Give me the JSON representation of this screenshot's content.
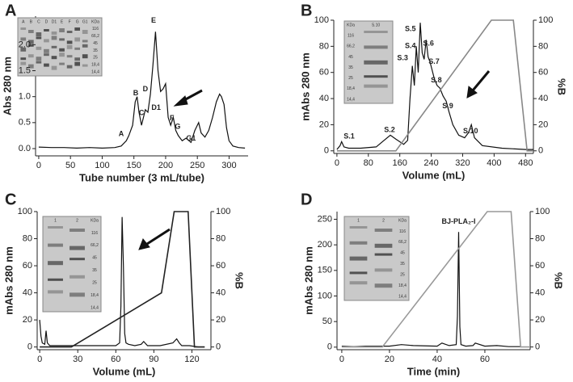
{
  "chart_data": [
    {
      "type": "line",
      "panel_label": "A",
      "xlabel": "Tube number (3 mL/tube)",
      "ylabel": "Abs 280 nm",
      "xlim": [
        -5,
        330
      ],
      "ylim": [
        -0.14,
        2.55
      ],
      "xticks": [
        0,
        50,
        100,
        150,
        200,
        250,
        300
      ],
      "yticks": [
        {
          "value": 0,
          "label": "0.0"
        },
        0.5,
        {
          "value": 1,
          "label": "1.0"
        },
        1.5,
        {
          "value": 2,
          "label": "2.0"
        }
      ],
      "series": [
        {
          "color": "#111111",
          "x": [
            0,
            20,
            40,
            60,
            80,
            100,
            120,
            130,
            138,
            142,
            148,
            152,
            155,
            158,
            162,
            165,
            168,
            172,
            176,
            180,
            184,
            188,
            192,
            196,
            200,
            204,
            208,
            212,
            216,
            220,
            226,
            232,
            240,
            246,
            252,
            256,
            262,
            268,
            274,
            280,
            285,
            288,
            292,
            296,
            300,
            306,
            315,
            325
          ],
          "values": [
            0.03,
            0.02,
            0.02,
            0.01,
            0.02,
            0.01,
            0.02,
            0.05,
            0.15,
            0.25,
            0.45,
            0.9,
            1.0,
            0.7,
            0.45,
            0.6,
            0.75,
            0.7,
            1.05,
            1.6,
            2.25,
            1.5,
            1.1,
            1.15,
            1.25,
            0.6,
            0.45,
            0.6,
            0.35,
            0.25,
            0.15,
            0.2,
            0.12,
            0.35,
            0.5,
            0.3,
            0.22,
            0.35,
            0.6,
            0.9,
            1.05,
            1.0,
            0.85,
            0.4,
            0.15,
            0.05,
            0.02,
            0.01
          ]
        }
      ],
      "annotations": [
        {
          "text": "A",
          "x": 130,
          "y": 0.28
        },
        {
          "text": "B",
          "x": 153,
          "y": 1.06
        },
        {
          "text": "C",
          "x": 162,
          "y": 0.68
        },
        {
          "text": "D",
          "x": 168,
          "y": 1.14
        },
        {
          "text": "D1",
          "x": 185,
          "y": 0.78
        },
        {
          "text": "E",
          "x": 181,
          "y": 2.46
        },
        {
          "text": "F",
          "x": 210,
          "y": 0.58
        },
        {
          "text": "G",
          "x": 219,
          "y": 0.42
        },
        {
          "text": "G1",
          "x": 240,
          "y": 0.19
        }
      ],
      "inset": {
        "lanes": [
          "A",
          "B",
          "C",
          "D",
          "D1",
          "E",
          "F",
          "G",
          "G1"
        ],
        "markers": [
          "KDa",
          "116",
          "66,2",
          "45",
          "35",
          "25",
          "18,4",
          "14,4"
        ]
      }
    },
    {
      "type": "line",
      "panel_label": "B",
      "xlabel": "Volume (mL)",
      "ylabel": "mAbs 280 nm",
      "y2label": "%B",
      "xlim": [
        -8,
        500
      ],
      "ylim": [
        -2,
        100
      ],
      "y2lim": [
        -2,
        100
      ],
      "xticks": [
        0,
        80,
        160,
        240,
        320,
        400,
        480
      ],
      "yticks": [
        0,
        20,
        40,
        60,
        80,
        100
      ],
      "y2ticks": [
        0,
        20,
        40,
        60,
        80,
        100
      ],
      "series": [
        {
          "color": "#111111",
          "x": [
            0,
            8,
            12,
            18,
            30,
            60,
            100,
            120,
            136,
            150,
            170,
            180,
            186,
            192,
            197,
            202,
            207,
            212,
            217,
            222,
            227,
            232,
            237,
            242,
            248,
            255,
            262,
            270,
            278,
            285,
            295,
            310,
            325,
            335,
            342,
            350,
            370,
            420,
            480,
            500
          ],
          "values": [
            1,
            4,
            7,
            3,
            2,
            2,
            3,
            8,
            12,
            9,
            5,
            8,
            40,
            65,
            50,
            80,
            60,
            98,
            75,
            70,
            85,
            72,
            68,
            62,
            55,
            50,
            48,
            42,
            38,
            30,
            20,
            12,
            10,
            14,
            20,
            10,
            4,
            2,
            1,
            1
          ]
        },
        {
          "color": "#888888",
          "axis": "y2",
          "x": [
            0,
            150,
            393,
            449,
            484,
            500
          ],
          "values": [
            0,
            0,
            100,
            100,
            0,
            0
          ]
        }
      ],
      "annotations": [
        {
          "text": "S.1",
          "x": 31,
          "y": 11
        },
        {
          "text": "S.2",
          "x": 134,
          "y": 16
        },
        {
          "text": "S.3",
          "x": 167,
          "y": 71
        },
        {
          "text": "S.4",
          "x": 187,
          "y": 80
        },
        {
          "text": "S.5",
          "x": 187,
          "y": 93
        },
        {
          "text": "S.6",
          "x": 233,
          "y": 82
        },
        {
          "text": "S.7",
          "x": 247,
          "y": 68
        },
        {
          "text": "S.8",
          "x": 253,
          "y": 54
        },
        {
          "text": "S.9",
          "x": 282,
          "y": 34
        },
        {
          "text": "S.10",
          "x": 340,
          "y": 15
        }
      ],
      "inset": {
        "lanes": [
          "S.10"
        ],
        "markers": [
          "KDa",
          "116",
          "66,2",
          "45",
          "35",
          "25",
          "18,4",
          "14,4"
        ]
      }
    },
    {
      "type": "line",
      "panel_label": "C",
      "xlabel": "Volume (mL)",
      "ylabel": "mAbs 280 nm",
      "y2label": "%B",
      "xlim": [
        -2,
        135
      ],
      "ylim": [
        -2,
        100
      ],
      "y2lim": [
        -2,
        100
      ],
      "xticks": [
        0,
        30,
        60,
        90,
        120
      ],
      "yticks": [
        0,
        20,
        40,
        60,
        80,
        100
      ],
      "y2ticks": [
        0,
        20,
        40,
        60,
        80,
        100
      ],
      "series": [
        {
          "color": "#111111",
          "x": [
            0,
            1,
            2,
            4,
            5,
            6,
            8,
            15,
            30,
            50,
            60,
            63,
            64,
            65,
            66,
            67,
            68,
            70,
            75,
            80,
            82,
            85,
            95,
            105,
            108,
            110,
            112,
            118,
            125,
            130
          ],
          "values": [
            20,
            8,
            3,
            2,
            12,
            3,
            1,
            1,
            1,
            1,
            1,
            3,
            30,
            96,
            60,
            10,
            3,
            2,
            1,
            2,
            4,
            1,
            1,
            3,
            6,
            3,
            1,
            1,
            0,
            0
          ]
        },
        {
          "color": "#222222",
          "axis": "y2",
          "x": [
            0,
            25,
            96,
            106,
            117,
            122,
            130
          ],
          "values": [
            0,
            0,
            40,
            100,
            100,
            0,
            0
          ]
        }
      ],
      "annotations": [],
      "inset": {
        "lanes": [
          "1",
          "2"
        ],
        "markers": [
          "KDa",
          "116",
          "66,2",
          "45",
          "35",
          "25",
          "18,4",
          "14,4"
        ]
      }
    },
    {
      "type": "line",
      "panel_label": "D",
      "xlabel": "Time (min)",
      "ylabel": "mAbs 280 nm",
      "y2label": "%B",
      "xlim": [
        -2,
        79
      ],
      "ylim": [
        -5,
        265
      ],
      "y2lim": [
        -2,
        100
      ],
      "xticks": [
        0,
        20,
        40,
        60
      ],
      "yticks": [
        0,
        50,
        100,
        150,
        200,
        250
      ],
      "y2ticks": [
        0,
        20,
        40,
        60,
        80,
        100
      ],
      "series": [
        {
          "color": "#111111",
          "x": [
            0,
            5,
            10,
            20,
            25,
            30,
            40,
            42,
            45,
            48,
            48.5,
            49,
            49.5,
            50,
            52,
            55,
            56,
            60,
            65,
            70,
            75
          ],
          "values": [
            2,
            1,
            2,
            2,
            5,
            3,
            2,
            8,
            3,
            5,
            60,
            225,
            40,
            5,
            2,
            3,
            8,
            2,
            3,
            1,
            1
          ]
        },
        {
          "color": "#999999",
          "axis": "y2",
          "x": [
            0,
            17,
            61,
            71,
            75,
            79
          ],
          "values": [
            0,
            0,
            100,
            100,
            0,
            0
          ]
        }
      ],
      "annotations": [
        {
          "text": "BJ-PLA₂-I",
          "x": 49,
          "y": 245
        }
      ],
      "inset": {
        "lanes": [
          "1",
          "2"
        ],
        "markers": [
          "KDa",
          "116",
          "66,2",
          "45",
          "35",
          "25",
          "18,4",
          "14,4"
        ]
      }
    }
  ]
}
